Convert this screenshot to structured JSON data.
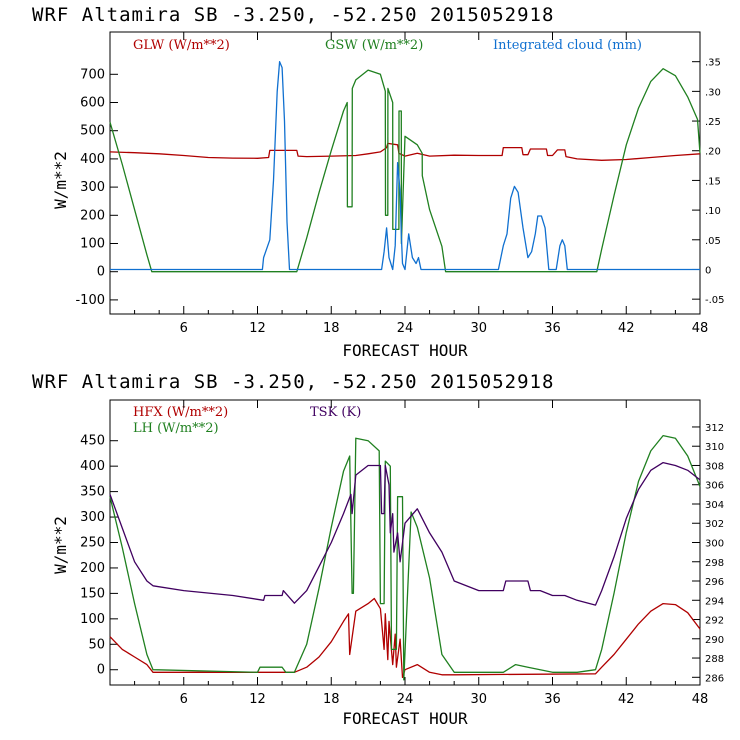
{
  "chart_data": [
    {
      "type": "line",
      "title": "WRF  Altamira  SB  -3.250, -52.250  2015052918",
      "xlabel": "FORECAST HOUR",
      "ylabel": "W/m**2",
      "xlim": [
        0,
        48
      ],
      "ylim": [
        -150,
        850
      ],
      "xticks": [
        6,
        12,
        18,
        24,
        30,
        36,
        42,
        48
      ],
      "yticks": [
        -100,
        0,
        100,
        200,
        300,
        400,
        500,
        600,
        700
      ],
      "right_axis": {
        "ylim": [
          -0.075,
          0.4
        ],
        "ticks": [
          -0.05,
          0,
          0.05,
          0.1,
          0.15,
          0.2,
          0.25,
          0.3,
          0.35
        ],
        "tick_labels": [
          "-.05",
          "0",
          ".05",
          ".10",
          ".15",
          ".20",
          ".25",
          ".30",
          ".35"
        ]
      },
      "series": [
        {
          "name": "GLW (W/m**2)",
          "color": "#b00000",
          "axis": "left",
          "x": [
            0,
            2,
            4,
            6,
            8,
            10,
            12,
            12.9,
            13,
            15.2,
            15.3,
            16,
            18,
            20,
            21,
            22,
            22.5,
            22.6,
            23.4,
            23.5,
            24,
            25,
            26,
            28,
            30,
            31.9,
            32,
            33.5,
            33.6,
            34,
            34.2,
            35.5,
            35.6,
            36,
            36.4,
            37,
            37.1,
            38,
            40,
            42,
            44,
            46,
            48
          ],
          "y": [
            425,
            422,
            418,
            412,
            405,
            403,
            402,
            405,
            430,
            430,
            410,
            408,
            410,
            412,
            418,
            425,
            440,
            455,
            450,
            420,
            410,
            420,
            410,
            413,
            412,
            412,
            440,
            440,
            415,
            415,
            435,
            435,
            412,
            412,
            432,
            432,
            408,
            400,
            395,
            398,
            405,
            412,
            418
          ]
        },
        {
          "name": "GSW (W/m**2)",
          "color": "#208020",
          "axis": "left",
          "x": [
            0,
            1,
            2,
            3,
            3.4,
            15.2,
            16,
            17,
            18,
            19,
            19.3,
            19.31,
            19.7,
            19.71,
            20,
            21,
            22,
            22.4,
            22.41,
            22.6,
            22.61,
            23,
            23.01,
            23.5,
            23.51,
            23.7,
            23.71,
            24,
            25,
            25.4,
            25.41,
            26,
            27,
            27.3,
            39.6,
            40,
            41,
            42,
            43,
            44,
            45,
            46,
            47,
            47.8,
            48
          ],
          "y": [
            530,
            380,
            220,
            60,
            0,
            0,
            120,
            280,
            430,
            570,
            600,
            230,
            230,
            650,
            680,
            715,
            700,
            640,
            200,
            200,
            650,
            600,
            150,
            150,
            570,
            570,
            100,
            480,
            450,
            420,
            340,
            220,
            90,
            0,
            0,
            80,
            270,
            450,
            580,
            675,
            720,
            695,
            620,
            540,
            420
          ]
        },
        {
          "name": "Integrated cloud (mm)",
          "color": "#1070d0",
          "axis": "right",
          "x": [
            0,
            12.4,
            12.5,
            13,
            13.3,
            13.6,
            13.8,
            14,
            14.2,
            14.4,
            14.6,
            22.1,
            22.3,
            22.5,
            22.7,
            23,
            23.2,
            23.4,
            23.6,
            23.7,
            23.8,
            24,
            24.3,
            24.6,
            24.9,
            25.1,
            25.3,
            31.6,
            32,
            32.3,
            32.6,
            32.9,
            33.2,
            33.6,
            34,
            34.3,
            34.6,
            34.8,
            35.1,
            35.4,
            35.7,
            36.3,
            36.6,
            36.8,
            37,
            37.2,
            48
          ],
          "y": [
            0,
            0,
            0.02,
            0.05,
            0.15,
            0.3,
            0.35,
            0.34,
            0.25,
            0.08,
            0,
            0,
            0.03,
            0.07,
            0.02,
            0,
            0.04,
            0.18,
            0.13,
            0.06,
            0.01,
            0,
            0.06,
            0.02,
            0.01,
            0.02,
            0,
            0,
            0.04,
            0.06,
            0.12,
            0.14,
            0.13,
            0.07,
            0.02,
            0.03,
            0.06,
            0.09,
            0.09,
            0.07,
            0,
            0,
            0.04,
            0.05,
            0.04,
            0,
            0
          ]
        }
      ],
      "legend": [
        "GLW (W/m**2)",
        "GSW (W/m**2)",
        "Integrated cloud (mm)"
      ]
    },
    {
      "type": "line",
      "title": "WRF  Altamira  SB  -3.250, -52.250  2015052918",
      "xlabel": "FORECAST HOUR",
      "ylabel": "W/m**2",
      "xlim": [
        0,
        48
      ],
      "ylim": [
        -30,
        530
      ],
      "xticks": [
        6,
        12,
        18,
        24,
        30,
        36,
        42,
        48
      ],
      "yticks": [
        0,
        50,
        100,
        150,
        200,
        250,
        300,
        350,
        400,
        450
      ],
      "right_axis": {
        "ylim": [
          285.2,
          314.8
        ],
        "ticks": [
          286,
          288,
          290,
          292,
          294,
          296,
          298,
          300,
          302,
          304,
          306,
          308,
          310,
          312
        ],
        "tick_labels": [
          "286",
          "288",
          "290",
          "292",
          "294",
          "296",
          "298",
          "300",
          "302",
          "304",
          "306",
          "308",
          "310",
          "312"
        ]
      },
      "series": [
        {
          "name": "HFX (W/m**2)",
          "color": "#b00000",
          "axis": "left",
          "x": [
            0,
            1,
            2,
            3,
            3.5,
            15,
            16,
            17,
            18,
            19,
            19.4,
            19.5,
            20,
            21,
            21.5,
            22,
            22.3,
            22.4,
            22.6,
            22.7,
            23,
            23.2,
            23.3,
            23.6,
            23.8,
            24,
            25,
            26,
            27,
            28,
            39.5,
            40,
            41,
            42,
            43,
            44,
            45,
            46,
            47,
            48
          ],
          "y": [
            65,
            40,
            25,
            10,
            -5,
            -5,
            5,
            25,
            55,
            95,
            110,
            30,
            115,
            130,
            140,
            120,
            40,
            110,
            20,
            95,
            10,
            70,
            5,
            60,
            -15,
            0,
            10,
            -5,
            -10,
            -10,
            -8,
            5,
            30,
            60,
            90,
            115,
            130,
            128,
            112,
            80
          ]
        },
        {
          "name": "LH (W/m**2)",
          "color": "#208020",
          "axis": "left",
          "x": [
            0,
            1,
            2,
            3,
            3.5,
            12,
            12.2,
            14,
            14.3,
            15,
            16,
            17,
            18,
            19,
            19.5,
            19.7,
            19.8,
            20,
            21,
            21.9,
            22,
            22.3,
            22.4,
            22.8,
            22.9,
            23.3,
            23.4,
            23.8,
            23.9,
            24.5,
            25,
            26,
            27,
            28,
            30,
            32,
            33,
            34,
            36,
            38,
            39.5,
            40,
            41,
            42,
            43,
            44,
            45,
            46,
            47,
            48
          ],
          "y": [
            340,
            240,
            130,
            30,
            0,
            -5,
            5,
            5,
            -5,
            -5,
            50,
            160,
            280,
            390,
            420,
            150,
            150,
            455,
            450,
            430,
            130,
            130,
            410,
            400,
            40,
            40,
            340,
            340,
            -20,
            310,
            280,
            180,
            30,
            -5,
            -5,
            -5,
            10,
            5,
            -5,
            -5,
            0,
            40,
            150,
            270,
            370,
            430,
            460,
            455,
            420,
            360
          ]
        },
        {
          "name": "TSK (K)",
          "color": "#400060",
          "axis": "right",
          "x": [
            0,
            1,
            2,
            3,
            3.5,
            6,
            10,
            12.5,
            12.6,
            14,
            14.1,
            15,
            16,
            17,
            18,
            19,
            19.6,
            19.7,
            20,
            21,
            22,
            22.1,
            22.3,
            22.4,
            22.7,
            22.8,
            23,
            23.1,
            23.4,
            23.6,
            24,
            25,
            26,
            27,
            28,
            30,
            32,
            32.2,
            34,
            34.2,
            35,
            36,
            37,
            38,
            39.5,
            40,
            41,
            42,
            43,
            44,
            45,
            46,
            47,
            48
          ],
          "y": [
            305,
            301.5,
            298,
            296,
            295.5,
            295,
            294.5,
            294,
            294.5,
            294.5,
            295,
            293.7,
            295,
            297.5,
            300,
            303,
            305,
            303,
            307,
            308,
            308,
            303,
            303,
            308,
            306,
            301,
            303,
            299,
            301,
            298,
            302,
            303.5,
            301,
            299,
            296,
            295,
            295,
            296,
            296,
            295,
            295,
            294.5,
            294.5,
            294,
            293.5,
            295,
            298.5,
            302.5,
            305.5,
            307.5,
            308.3,
            308,
            307.5,
            306.5
          ]
        }
      ],
      "legend": [
        "HFX (W/m**2)",
        "LH (W/m**2)",
        "TSK (K)"
      ]
    }
  ]
}
